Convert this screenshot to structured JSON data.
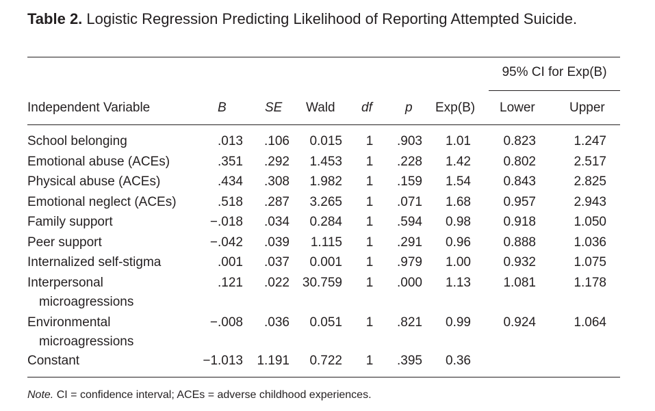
{
  "caption": {
    "number": "Table 2.",
    "title": "Logistic Regression Predicting Likelihood of Reporting Attempted Suicide."
  },
  "headers": {
    "ci_group": "95% CI for Exp(B)",
    "variable": "Independent Variable",
    "b": "B",
    "se": "SE",
    "wald": "Wald",
    "df": "df",
    "p": "p",
    "expb": "Exp(B)",
    "lower": "Lower",
    "upper": "Upper"
  },
  "rows": [
    {
      "var": "School belonging",
      "var2": "",
      "b": ".013",
      "se": ".106",
      "wald": "0.015",
      "df": "1",
      "p": ".903",
      "expb": "1.01",
      "lower": "0.823",
      "upper": "1.247"
    },
    {
      "var": "Emotional abuse (ACEs)",
      "var2": "",
      "b": ".351",
      "se": ".292",
      "wald": "1.453",
      "df": "1",
      "p": ".228",
      "expb": "1.42",
      "lower": "0.802",
      "upper": "2.517"
    },
    {
      "var": "Physical abuse (ACEs)",
      "var2": "",
      "b": ".434",
      "se": ".308",
      "wald": "1.982",
      "df": "1",
      "p": ".159",
      "expb": "1.54",
      "lower": "0.843",
      "upper": "2.825"
    },
    {
      "var": "Emotional neglect (ACEs)",
      "var2": "",
      "b": ".518",
      "se": ".287",
      "wald": "3.265",
      "df": "1",
      "p": ".071",
      "expb": "1.68",
      "lower": "0.957",
      "upper": "2.943"
    },
    {
      "var": "Family support",
      "var2": "",
      "b": "−.018",
      "se": ".034",
      "wald": "0.284",
      "df": "1",
      "p": ".594",
      "expb": "0.98",
      "lower": "0.918",
      "upper": "1.050"
    },
    {
      "var": "Peer support",
      "var2": "",
      "b": "−.042",
      "se": ".039",
      "wald": "1.115",
      "df": "1",
      "p": ".291",
      "expb": "0.96",
      "lower": "0.888",
      "upper": "1.036"
    },
    {
      "var": "Internalized self-stigma",
      "var2": "",
      "b": ".001",
      "se": ".037",
      "wald": "0.001",
      "df": "1",
      "p": ".979",
      "expb": "1.00",
      "lower": "0.932",
      "upper": "1.075"
    },
    {
      "var": "Interpersonal",
      "var2": "microagressions",
      "b": ".121",
      "se": ".022",
      "wald": "30.759",
      "df": "1",
      "p": ".000",
      "expb": "1.13",
      "lower": "1.081",
      "upper": "1.178"
    },
    {
      "var": "Environmental",
      "var2": "microagressions",
      "b": "−.008",
      "se": ".036",
      "wald": "0.051",
      "df": "1",
      "p": ".821",
      "expb": "0.99",
      "lower": "0.924",
      "upper": "1.064"
    },
    {
      "var": "Constant",
      "var2": "",
      "b": "−1.013",
      "se": "1.191",
      "wald": "0.722",
      "df": "1",
      "p": ".395",
      "expb": "0.36",
      "lower": "",
      "upper": ""
    }
  ],
  "note": {
    "label": "Note.",
    "text": "CI = confidence interval; ACEs = adverse childhood experiences."
  }
}
